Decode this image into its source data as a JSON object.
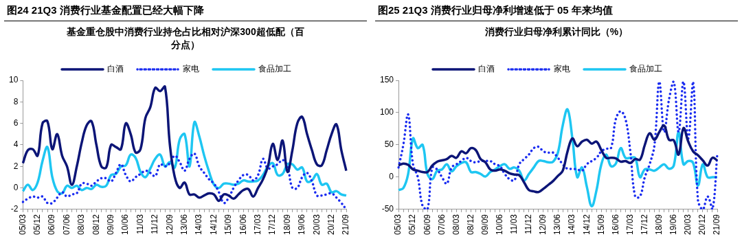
{
  "chart_data": [
    {
      "type": "line",
      "title": "图24 21Q3 消费行业基金配置已经大幅下降",
      "subtitle": "基金重仓股中消费行业持仓占比相对沪深300超低配（百分点）",
      "categories": [
        "05/03",
        null,
        null,
        "05/12",
        null,
        null,
        "06/09",
        null,
        null,
        "07/06",
        null,
        null,
        "08/03",
        null,
        null,
        "08/12",
        null,
        null,
        "09/09",
        null,
        null,
        "10/06",
        null,
        null,
        "11/03",
        null,
        null,
        "11/12",
        null,
        null,
        "12/09",
        null,
        null,
        "13/06",
        null,
        null,
        "14/03",
        null,
        null,
        "14/12",
        null,
        null,
        "15/09",
        null,
        null,
        "16/06",
        null,
        null,
        "17/03",
        null,
        null,
        "17/12",
        null,
        null,
        "18/09",
        null,
        null,
        "19/06",
        null,
        null,
        "20/03",
        null,
        null,
        "20/12",
        null,
        null,
        "21/09"
      ],
      "series": [
        {
          "name": "白酒",
          "color": "#0c1577",
          "line_style": "solid",
          "values": [
            2.3,
            3.5,
            3.6,
            3.0,
            6.0,
            6.2,
            3.6,
            5.0,
            3.0,
            2.0,
            0.3,
            2.0,
            4.2,
            5.8,
            6.2,
            4.0,
            2.0,
            1.9,
            4.0,
            3.8,
            3.6,
            6.0,
            5.0,
            3.3,
            3.6,
            6.5,
            7.5,
            9.3,
            9.0,
            9.4,
            4.0,
            1.0,
            0.0,
            0.5,
            -0.6,
            -0.6,
            -0.9,
            -0.7,
            -0.5,
            -0.6,
            -1.2,
            -0.6,
            -0.7,
            -1.0,
            -0.6,
            -0.2,
            -0.1,
            -0.8,
            0.0,
            0.8,
            2.0,
            4.1,
            2.6,
            4.4,
            1.5,
            3.5,
            6.0,
            6.6,
            5.0,
            3.5,
            2.2,
            2.1,
            3.5,
            5.0,
            5.9,
            3.5,
            1.6
          ]
        },
        {
          "name": "家电",
          "color": "#1a2cf0",
          "line_style": "dotted",
          "values": [
            -1.3,
            -1.0,
            -0.8,
            -0.9,
            -0.8,
            -1.4,
            -1.4,
            -0.9,
            -0.4,
            -0.8,
            -0.6,
            -0.5,
            0.4,
            0.4,
            0.2,
            0.6,
            0.9,
            0.9,
            0.6,
            1.4,
            2.2,
            1.2,
            0.6,
            1.0,
            1.3,
            1.6,
            1.4,
            1.1,
            2.2,
            2.0,
            2.3,
            3.0,
            2.4,
            1.6,
            2.7,
            3.2,
            2.0,
            1.4,
            0.8,
            0.4,
            -0.4,
            -1.4,
            -0.9,
            0.0,
            0.7,
            1.2,
            1.2,
            0.7,
            1.2,
            2.7,
            1.8,
            2.0,
            2.2,
            2.6,
            2.0,
            0.0,
            0.0,
            1.0,
            1.4,
            0.6,
            -0.7,
            -0.7,
            -0.6,
            -0.5,
            -0.9,
            -1.4,
            -2.0
          ]
        },
        {
          "name": "食品加工",
          "color": "#1ec6f2",
          "line_style": "solid",
          "values": [
            -0.3,
            0.3,
            -0.2,
            0.5,
            2.5,
            3.8,
            1.0,
            -0.3,
            -0.5,
            0.2,
            0.0,
            0.2,
            -0.2,
            0.0,
            -0.1,
            0.3,
            0.1,
            0.2,
            1.2,
            1.3,
            2.0,
            2.1,
            3.1,
            2.8,
            1.5,
            1.0,
            1.8,
            2.7,
            3.1,
            2.0,
            2.4,
            1.9,
            4.5,
            5.0,
            2.0,
            6.1,
            4.8,
            3.0,
            1.5,
            0.3,
            0.0,
            0.4,
            0.4,
            0.3,
            0.4,
            0.7,
            0.6,
            0.6,
            0.7,
            1.2,
            2.0,
            2.3,
            1.2,
            1.3,
            2.2,
            2.2,
            1.7,
            1.9,
            0.6,
            0.7,
            1.3,
            0.3,
            0.4,
            -0.4,
            -0.3,
            -0.6,
            -0.7
          ]
        }
      ],
      "ylim": [
        -2,
        10
      ],
      "yticks": [
        -2,
        0,
        2,
        4,
        6,
        8,
        10
      ],
      "legend": "top",
      "grid": false
    },
    {
      "type": "line",
      "title": "图25 21Q3 消费行业归母净利增速低于 05 年来均值",
      "subtitle": "消费行业归母净利累计同比（%）",
      "categories": [
        "05/03",
        null,
        null,
        "05/12",
        null,
        null,
        "06/09",
        null,
        null,
        "07/06",
        null,
        null,
        "08/03",
        null,
        null,
        "08/12",
        null,
        null,
        "09/09",
        null,
        null,
        "10/06",
        null,
        null,
        "11/03",
        null,
        null,
        "11/12",
        null,
        null,
        "12/09",
        null,
        null,
        "13/06",
        null,
        null,
        "14/03",
        null,
        null,
        "14/12",
        null,
        null,
        "15/09",
        null,
        null,
        "16/06",
        null,
        null,
        "17/03",
        null,
        null,
        "17/12",
        null,
        null,
        "18/09",
        null,
        null,
        "19/06",
        null,
        null,
        "20/03",
        null,
        null,
        "20/12",
        null,
        null,
        "21/09"
      ],
      "series": [
        {
          "name": "白酒",
          "color": "#0c1577",
          "line_style": "solid",
          "values": [
            18,
            21,
            19,
            12,
            10,
            8,
            8,
            18,
            24,
            26,
            28,
            33,
            30,
            40,
            37,
            45,
            42,
            28,
            23,
            12,
            10,
            12,
            10,
            6,
            4,
            3,
            -8,
            -20,
            -22,
            -23,
            -18,
            -12,
            -6,
            2,
            10,
            40,
            60,
            48,
            55,
            58,
            52,
            55,
            42,
            30,
            30,
            29,
            24,
            25,
            22,
            28,
            27,
            50,
            68,
            58,
            70,
            80,
            58,
            57,
            35,
            76,
            55,
            40,
            34,
            26,
            18,
            30,
            26
          ]
        },
        {
          "name": "家电",
          "color": "#1a2cf0",
          "line_style": "dotted",
          "values": [
            15,
            50,
            97,
            20,
            0,
            -45,
            -50,
            15,
            12,
            0,
            -10,
            15,
            20,
            25,
            30,
            25,
            23,
            25,
            25,
            25,
            20,
            17,
            5,
            -3,
            -5,
            20,
            28,
            35,
            45,
            47,
            40,
            38,
            38,
            30,
            20,
            13,
            13,
            12,
            10,
            20,
            25,
            30,
            40,
            44,
            45,
            90,
            102,
            90,
            40,
            -30,
            -30,
            0,
            20,
            50,
            148,
            70,
            120,
            148,
            70,
            148,
            60,
            148,
            -35,
            -50,
            -30,
            -50,
            35
          ]
        },
        {
          "name": "食品加工",
          "color": "#1ec6f2",
          "line_style": "solid",
          "values": [
            -20,
            -17,
            5,
            60,
            45,
            50,
            5,
            -3,
            10,
            12,
            20,
            9,
            17,
            22,
            23,
            8,
            8,
            5,
            1,
            8,
            12,
            17,
            20,
            13,
            15,
            10,
            -5,
            5,
            15,
            25,
            25,
            23,
            24,
            38,
            80,
            105,
            60,
            0,
            15,
            -15,
            -45,
            -20,
            20,
            35,
            17,
            21,
            45,
            30,
            30,
            30,
            0,
            12,
            12,
            10,
            15,
            20,
            13,
            18,
            70,
            20,
            25,
            22,
            -13,
            20,
            0,
            0,
            0
          ]
        }
      ],
      "ylim": [
        -50,
        150
      ],
      "yticks": [
        -50,
        0,
        50,
        100,
        150
      ],
      "legend": "top",
      "grid": false
    }
  ]
}
